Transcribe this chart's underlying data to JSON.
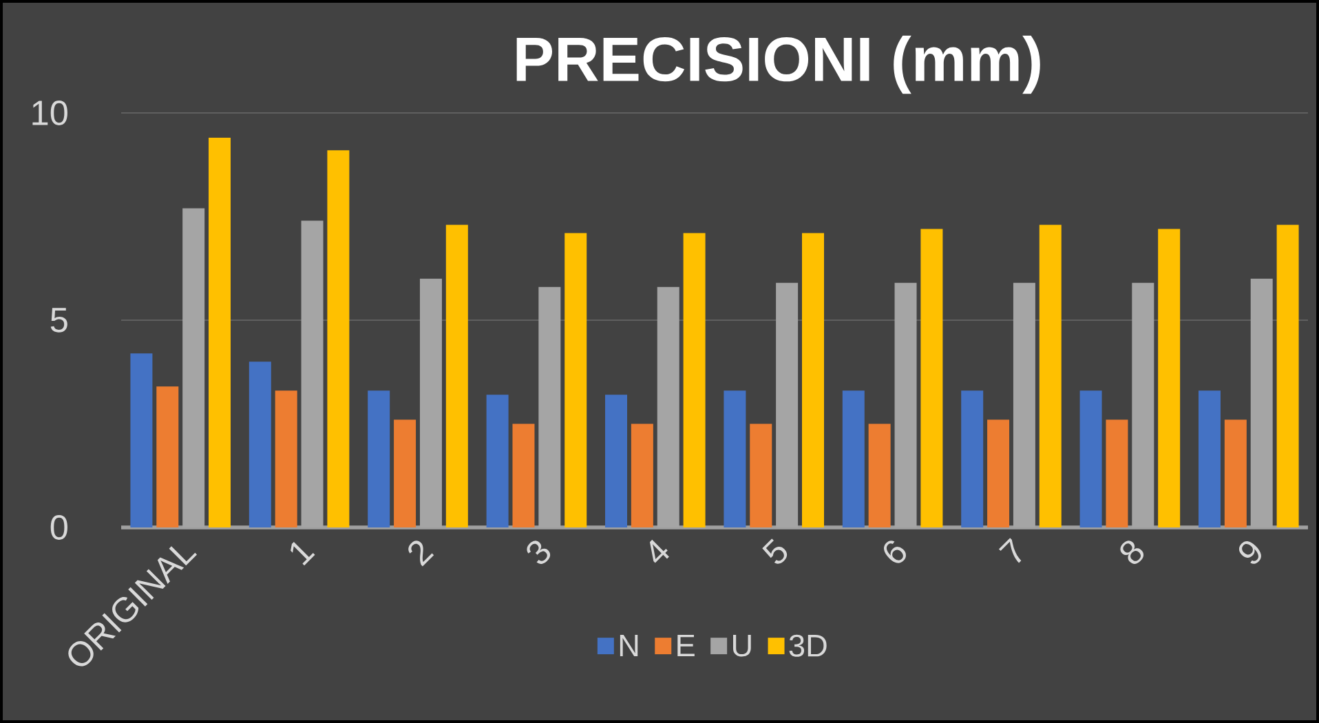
{
  "chart_data": {
    "type": "bar",
    "title": "PRECISIONI (mm)",
    "categories": [
      "ORIGINAL",
      "1",
      "2",
      "3",
      "4",
      "5",
      "6",
      "7",
      "8",
      "9"
    ],
    "series": [
      {
        "name": "N",
        "color": "#4472c4",
        "values": [
          4.2,
          4.0,
          3.3,
          3.2,
          3.2,
          3.3,
          3.3,
          3.3,
          3.3,
          3.3
        ]
      },
      {
        "name": "E",
        "color": "#ed7d31",
        "values": [
          3.4,
          3.3,
          2.6,
          2.5,
          2.5,
          2.5,
          2.5,
          2.6,
          2.6,
          2.6
        ]
      },
      {
        "name": "U",
        "color": "#a5a5a5",
        "values": [
          7.7,
          7.4,
          6.0,
          5.8,
          5.8,
          5.9,
          5.9,
          5.9,
          5.9,
          6.0
        ]
      },
      {
        "name": "3D",
        "color": "#ffc000",
        "values": [
          9.4,
          9.1,
          7.3,
          7.1,
          7.1,
          7.1,
          7.2,
          7.3,
          7.2,
          7.3
        ]
      }
    ],
    "ylim": [
      0,
      10
    ],
    "yticks": [
      0,
      5,
      10
    ],
    "grid": "y",
    "legend": "bottom"
  }
}
